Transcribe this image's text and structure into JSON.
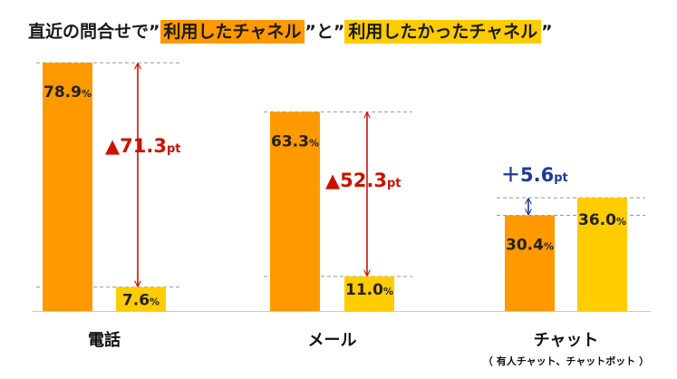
{
  "title": {
    "prefix": "直近の問合せで",
    "q1": "”",
    "highlight_used": "利用したチャネル",
    "mid": "”と”",
    "highlight_wanted": "利用したかったチャネル",
    "q2": "”"
  },
  "colors": {
    "used": "#FF9900",
    "wanted": "#FFCC00",
    "increase": "#CC1100",
    "decrease": "#1F3A93"
  },
  "chart_data": {
    "type": "bar",
    "title": "直近の問合せで”利用したチャネル”と”利用したかったチャネル”",
    "categories": [
      "電話",
      "メール",
      "チャット"
    ],
    "category_notes": [
      "",
      "",
      "（ 有人チャット、チャットボット ）"
    ],
    "series": [
      {
        "name": "利用したチャネル",
        "values": [
          78.9,
          63.3,
          30.4
        ],
        "labels": [
          "78.9",
          "63.3",
          "30.4"
        ]
      },
      {
        "name": "利用したかったチャネル",
        "values": [
          7.6,
          11.0,
          36.0
        ],
        "labels": [
          "7.6",
          "11.0",
          "36.0"
        ]
      }
    ],
    "value_unit": "%",
    "differences": [
      {
        "sign": "▲",
        "value": "71.3",
        "unit": "pt",
        "direction": "decrease"
      },
      {
        "sign": "▲",
        "value": "52.3",
        "unit": "pt",
        "direction": "decrease"
      },
      {
        "sign": "＋",
        "value": "5.6",
        "unit": "pt",
        "direction": "increase"
      }
    ],
    "ylim": [
      0,
      80
    ],
    "xlabel": "",
    "ylabel": "",
    "grid": false
  }
}
